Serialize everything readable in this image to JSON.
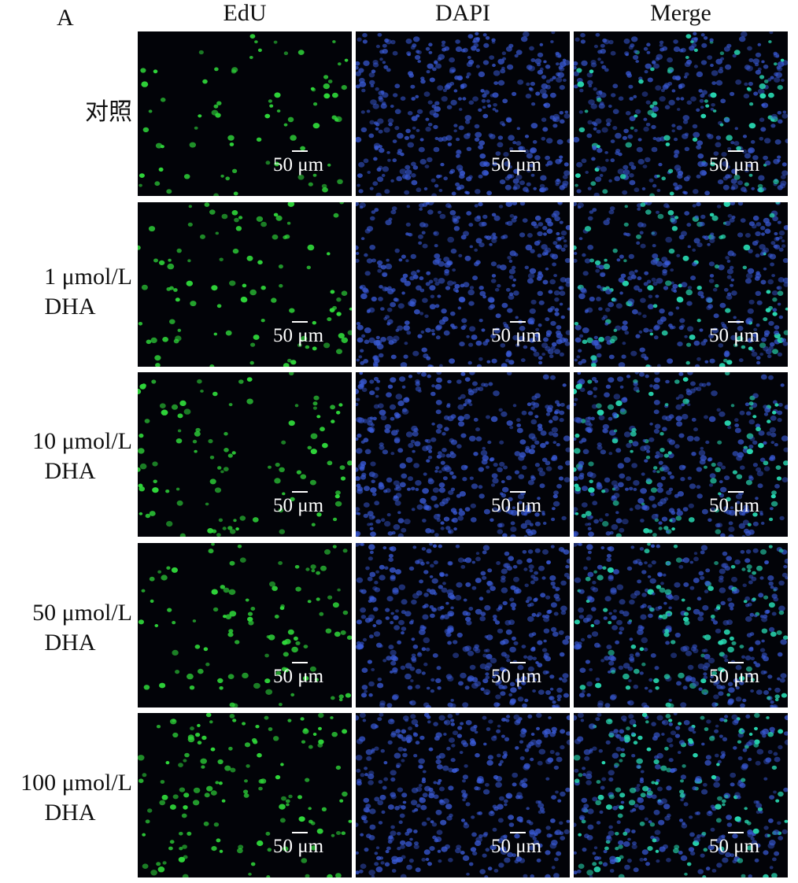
{
  "panel_letter": "A",
  "columns": [
    {
      "label": "EdU",
      "channel": "edu"
    },
    {
      "label": "DAPI",
      "channel": "dapi"
    },
    {
      "label": "Merge",
      "channel": "merge"
    }
  ],
  "rows": [
    {
      "line1": "对照",
      "line2": "",
      "edu_density": 0.35
    },
    {
      "line1": "1 μmol/L",
      "line2": "DHA",
      "edu_density": 0.42
    },
    {
      "line1": "10 μmol/L",
      "line2": "DHA",
      "edu_density": 0.5
    },
    {
      "line1": "50 μmol/L",
      "line2": "DHA",
      "edu_density": 0.55
    },
    {
      "line1": "100 μmol/L",
      "line2": "DHA",
      "edu_density": 0.65
    }
  ],
  "scale_bar_label": "50 μm",
  "colors": {
    "edu": "#2fd63a",
    "dapi": "#3a5bd8",
    "merge_overlap": "#28d7b0",
    "background": "#020308"
  }
}
